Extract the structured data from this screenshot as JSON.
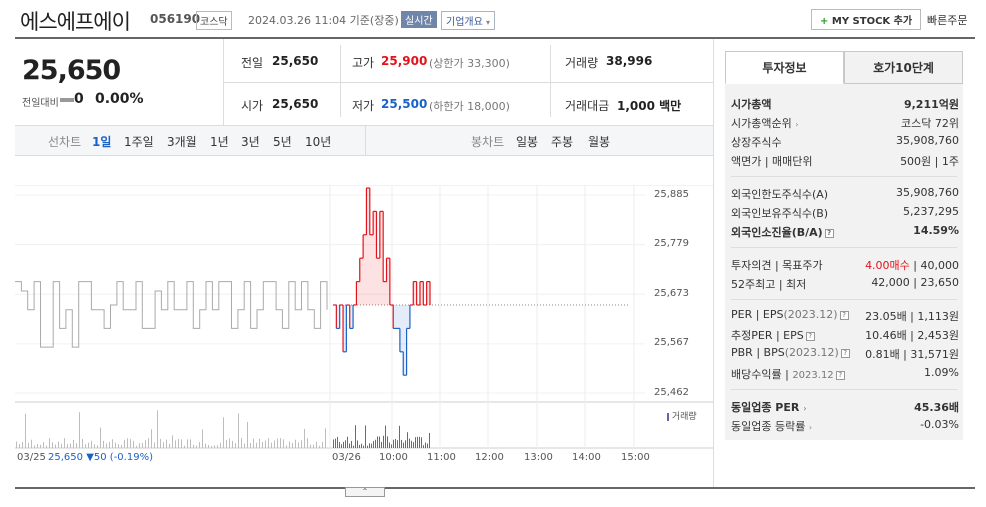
{
  "header": {
    "name": "에스에프에이",
    "code": "056190",
    "market": "코스닥",
    "time": "2024.03.26 11:04 기준(장중)",
    "live": "실시간",
    "overview": "기업개요",
    "mystock": "MY STOCK 추가",
    "quick": "빠른주문"
  },
  "price": {
    "current": "25,650",
    "change_label": "전일대비",
    "change": "0",
    "change_pct": "0.00%"
  },
  "quote": {
    "prev_label": "전일",
    "prev": "25,650",
    "high_label": "고가",
    "high": "25,900",
    "upper_limit": "(상한가 33,300)",
    "volume_label": "거래량",
    "volume": "38,996",
    "open_label": "시가",
    "open": "25,650",
    "low_label": "저가",
    "low": "25,500",
    "lower_limit": "(하한가 18,000)",
    "amount_label": "거래대금",
    "amount": "1,000 백만"
  },
  "nav": {
    "line_label": "선차트",
    "periods": [
      "1일",
      "1주일",
      "3개월",
      "1년",
      "3년",
      "5년",
      "10년"
    ],
    "candle_label": "봉차트",
    "candles": [
      "일봉",
      "주봉",
      "월봉"
    ]
  },
  "chart_data": {
    "type": "line",
    "y_ticks": [
      "25,885",
      "25,779",
      "25,673",
      "25,567",
      "25,462"
    ],
    "x_ticks": [
      "03/25",
      "03/26",
      "10:00",
      "11:00",
      "12:00",
      "13:00",
      "14:00",
      "15:00"
    ],
    "baseline": 25650,
    "ylim": [
      25462,
      25885
    ],
    "prev_day": [
      25700,
      25680,
      25640,
      25700,
      25560,
      25560,
      25700,
      25600,
      25640,
      25560,
      25700,
      25700,
      25640,
      25640,
      25600,
      25650,
      25700,
      25640,
      25640,
      25700,
      25600,
      25600,
      25680,
      25640,
      25700,
      25640,
      25640,
      25700,
      25600,
      25640,
      25700,
      25640,
      25700,
      25700,
      25600,
      25640,
      25700,
      25600,
      25640,
      25700,
      25700,
      25640,
      25600,
      25700,
      25640,
      25700,
      25640,
      25600,
      25700,
      25640
    ],
    "today": [
      25650,
      25600,
      25650,
      25550,
      25650,
      25600,
      25650,
      25700,
      25750,
      25800,
      25900,
      25800,
      25850,
      25750,
      25850,
      25700,
      25750,
      25650,
      25600,
      25600,
      25550,
      25500,
      25600,
      25650,
      25700,
      25650,
      25700,
      25650,
      25700,
      25650
    ],
    "volume_label": "거래량",
    "quote_line": {
      "date": "03/25",
      "price": "25,650",
      "change": "▼50",
      "pct": "(-0.19%)"
    }
  },
  "panel": {
    "tab_info": "투자정보",
    "tab_orderbook": "호가10단계",
    "rows1": [
      {
        "label": "시가총액",
        "value": "9,211억원",
        "bold": true
      },
      {
        "label": "시가총액순위",
        "value": "코스닥 72위"
      },
      {
        "label": "상장주식수",
        "value": "35,908,760"
      },
      {
        "label": "액면가 | 매매단위",
        "value": "500원 | 1주"
      }
    ],
    "rows2": [
      {
        "label": "외국인한도주식수(A)",
        "value": "35,908,760"
      },
      {
        "label": "외국인보유주식수(B)",
        "value": "5,237,295"
      },
      {
        "label": "외국인소진율(B/A)",
        "value": "14.59%",
        "bold": true
      }
    ],
    "opinion_label": "투자의견 | 목표주가",
    "opinion_value": "4.00매수",
    "target_value": "40,000",
    "week52_label": "52주최고 | 최저",
    "week52_value": "42,000 | 23,650",
    "per_label": "PER | EPS",
    "per_date": "(2023.12)",
    "per_value": "23.05배 | 1,113원",
    "eper_label": "추정PER | EPS",
    "eper_value": "10.46배 | 2,453원",
    "pbr_label": "PBR | BPS",
    "pbr_date": "(2023.12)",
    "pbr_value": "0.81배 | 31,571원",
    "div_label": "배당수익률",
    "div_date": "2023.12",
    "div_value": "1.09%",
    "sector_per_label": "동일업종 PER",
    "sector_per_value": "45.36배",
    "sector_chg_label": "동일업종 등락률",
    "sector_chg_value": "-0.03%"
  }
}
